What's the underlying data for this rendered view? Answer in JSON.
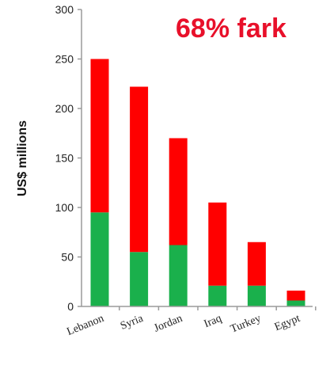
{
  "chart_data": {
    "type": "bar",
    "stacked": true,
    "categories": [
      "Lebanon",
      "Syria",
      "Jordan",
      "Iraq",
      "Turkey",
      "Egypt"
    ],
    "series": [
      {
        "color": "#1ab04c",
        "values": [
          95,
          55,
          62,
          21,
          21,
          6
        ]
      },
      {
        "color": "#ff0000",
        "values": [
          155,
          167,
          108,
          84,
          44,
          10
        ]
      }
    ],
    "ylabel": "US$ millions",
    "ylim": [
      0,
      300
    ],
    "yticks": [
      "0",
      "50",
      "100",
      "150",
      "200",
      "250",
      "300"
    ],
    "annotation": "68% fark",
    "annotation_color": "#e8102a",
    "grid": false
  }
}
